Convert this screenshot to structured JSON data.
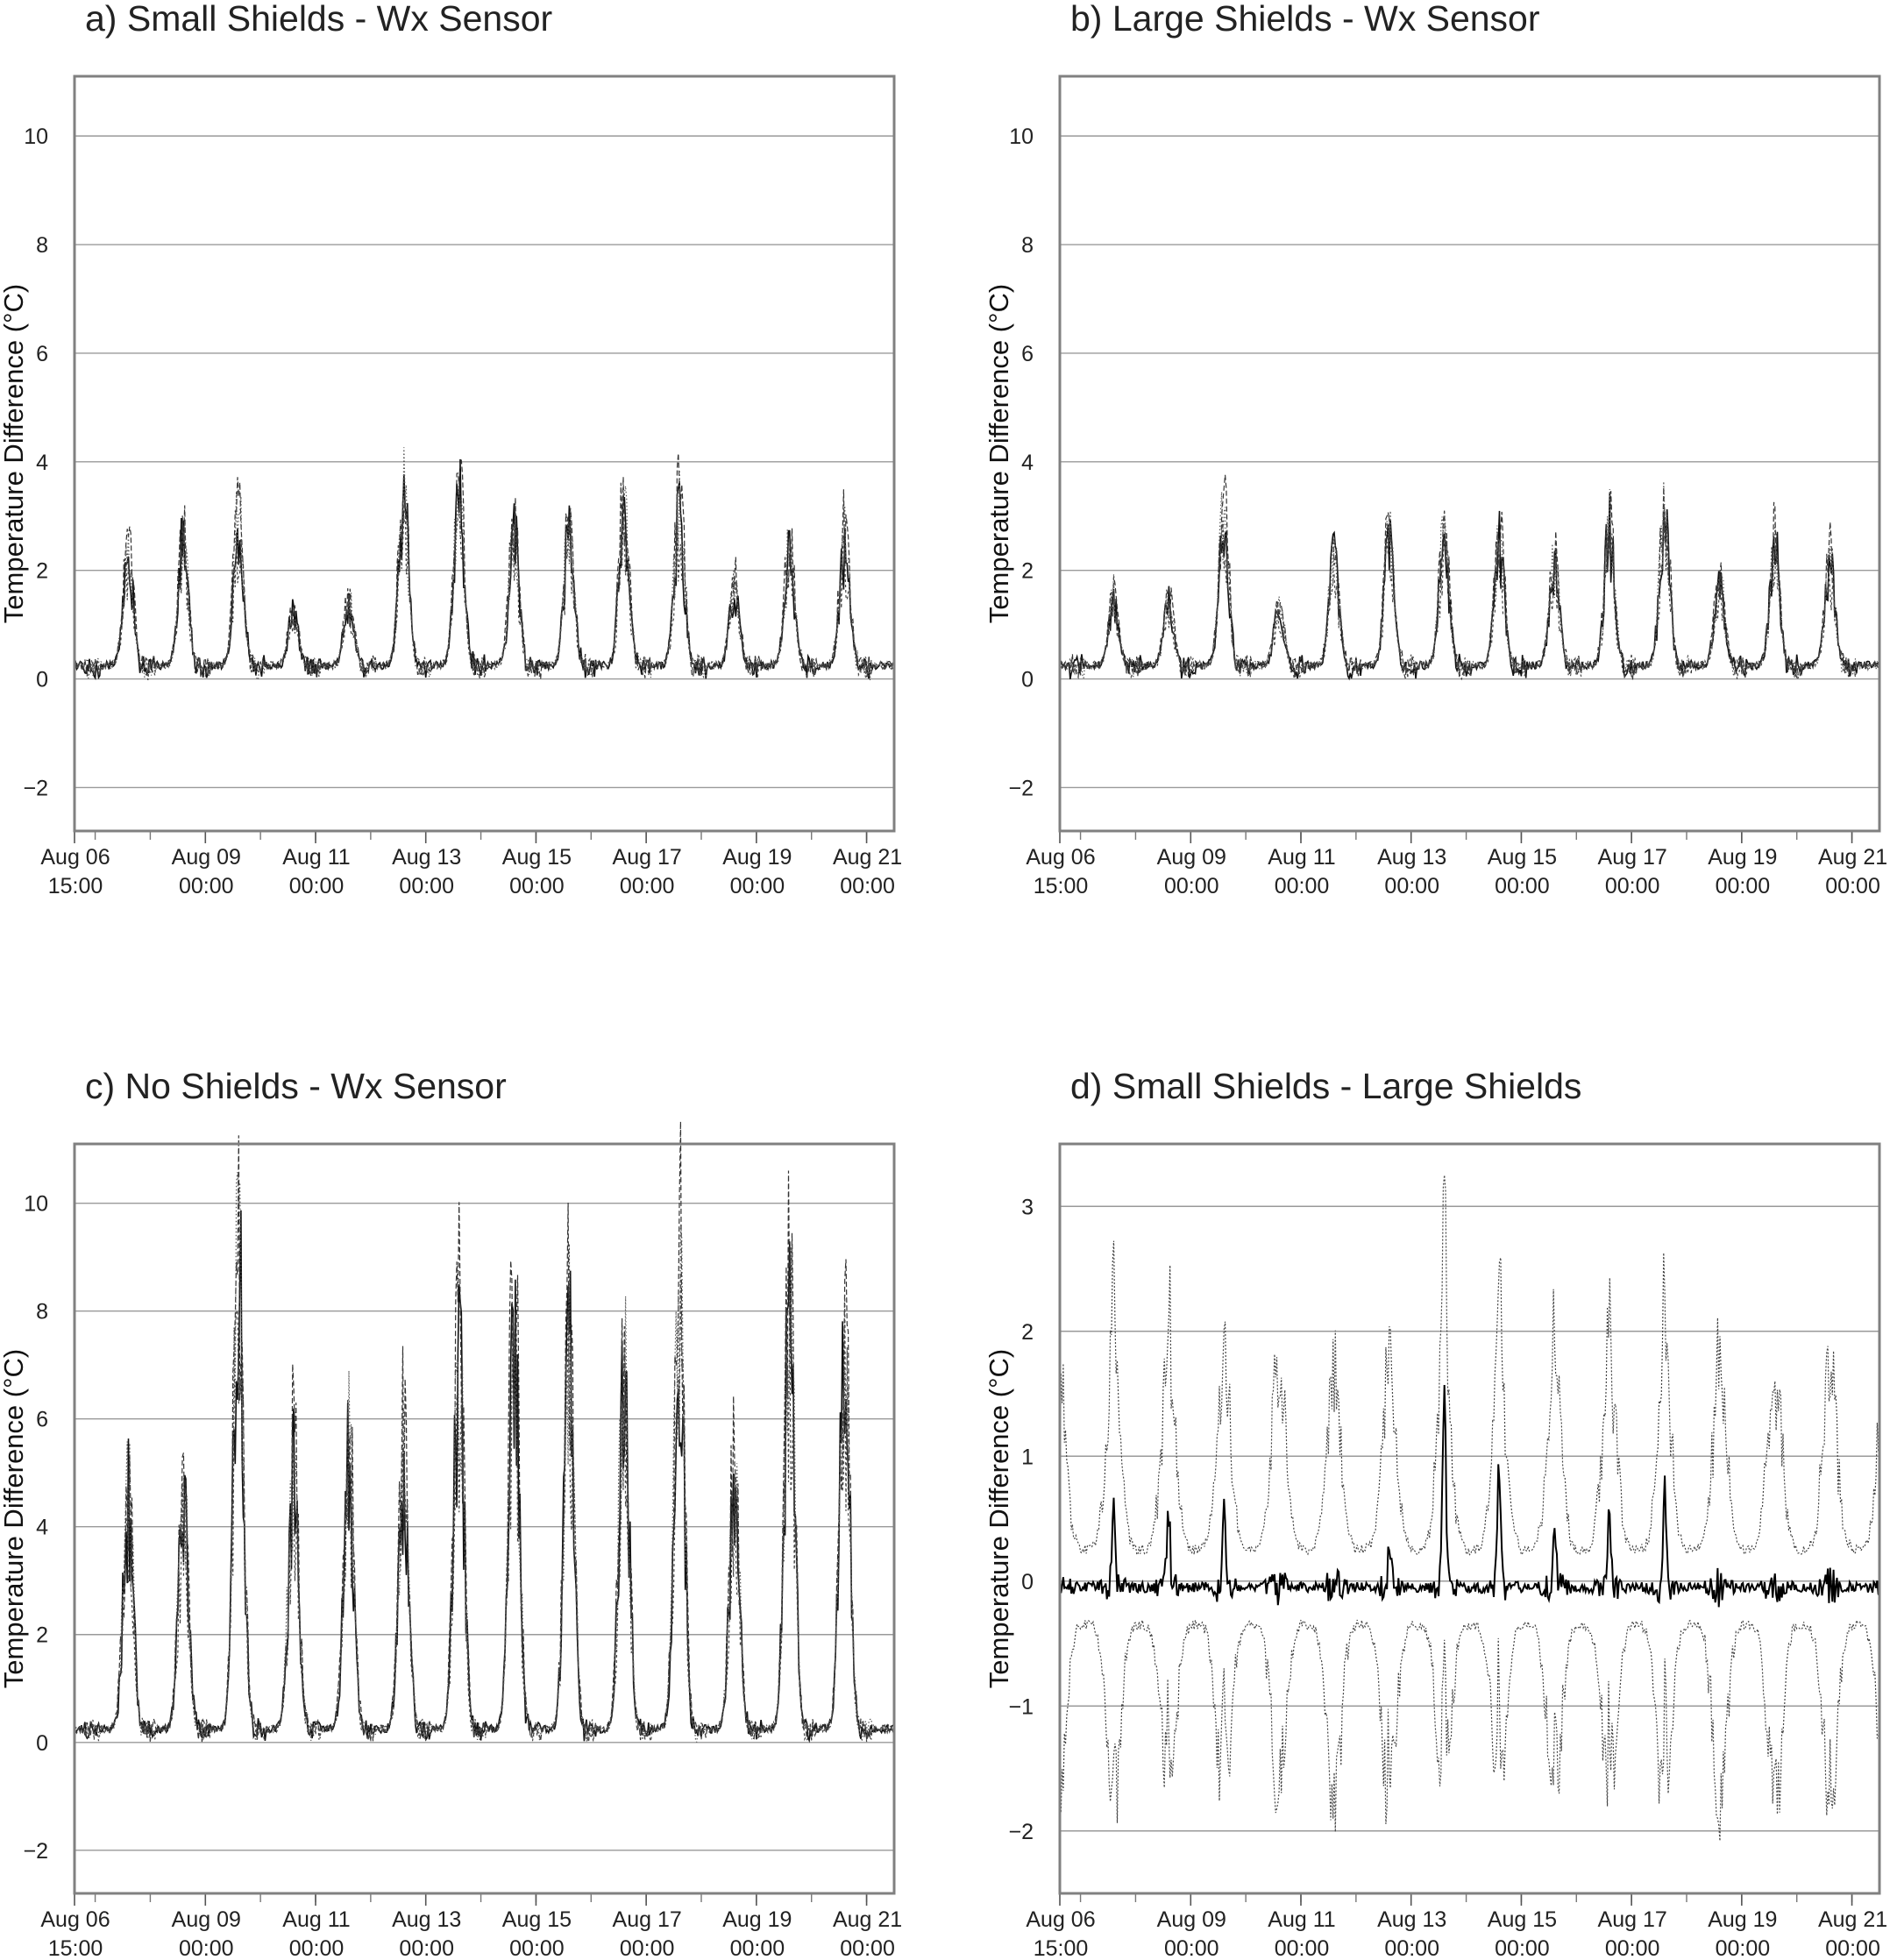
{
  "chart_data": [
    {
      "type": "line",
      "title": "a) Small Shields - Wx Sensor",
      "ylabel": "Temperature Difference (°C)",
      "xlabel": "",
      "ylim": [
        -2.8,
        11.1
      ],
      "yticks": [
        -2,
        0,
        2,
        4,
        6,
        8,
        10
      ],
      "ytick_labels": [
        "−2",
        "0",
        "2",
        "4",
        "6",
        "8",
        "10"
      ],
      "xlim": [
        "2019-08-06 15:00",
        "2019-08-21 12:00"
      ],
      "xticks": [
        "Aug 06\n15:00",
        "Aug 09\n00:00",
        "Aug 11\n00:00",
        "Aug 13\n00:00",
        "Aug 15\n00:00",
        "Aug 17\n00:00",
        "Aug 19\n00:00",
        "Aug 21\n00:00"
      ],
      "xtick_days": [
        6.625,
        9,
        11,
        13,
        15,
        17,
        19,
        21
      ],
      "daily_peaks": [
        {
          "day": 7.6,
          "value": 2.5
        },
        {
          "day": 8.6,
          "value": 2.8
        },
        {
          "day": 9.6,
          "value": 3.3
        },
        {
          "day": 10.6,
          "value": 1.2
        },
        {
          "day": 11.6,
          "value": 1.4
        },
        {
          "day": 12.6,
          "value": 3.8
        },
        {
          "day": 13.6,
          "value": 4.0
        },
        {
          "day": 14.6,
          "value": 3.0
        },
        {
          "day": 15.6,
          "value": 3.0
        },
        {
          "day": 16.6,
          "value": 3.6
        },
        {
          "day": 17.6,
          "value": 3.5
        },
        {
          "day": 18.6,
          "value": 1.8
        },
        {
          "day": 19.6,
          "value": 2.6
        },
        {
          "day": 20.6,
          "value": 2.8
        }
      ],
      "min_value": -0.7,
      "grid": true
    },
    {
      "type": "line",
      "title": "b) Large Shields - Wx Sensor",
      "ylabel": "Temperature Difference (°C)",
      "xlabel": "",
      "ylim": [
        -2.8,
        11.1
      ],
      "yticks": [
        -2,
        0,
        2,
        4,
        6,
        8,
        10
      ],
      "ytick_labels": [
        "−2",
        "0",
        "2",
        "4",
        "6",
        "8",
        "10"
      ],
      "xlim": [
        "2019-08-06 15:00",
        "2019-08-21 12:00"
      ],
      "xticks": [
        "Aug 06\n15:00",
        "Aug 09\n00:00",
        "Aug 11\n00:00",
        "Aug 13\n00:00",
        "Aug 15\n00:00",
        "Aug 17\n00:00",
        "Aug 19\n00:00",
        "Aug 21\n00:00"
      ],
      "xtick_days": [
        6.625,
        9,
        11,
        13,
        15,
        17,
        19,
        21
      ],
      "daily_peaks": [
        {
          "day": 7.6,
          "value": 1.5
        },
        {
          "day": 8.6,
          "value": 1.4
        },
        {
          "day": 9.6,
          "value": 3.3
        },
        {
          "day": 10.6,
          "value": 1.3
        },
        {
          "day": 11.6,
          "value": 2.4
        },
        {
          "day": 12.6,
          "value": 2.9
        },
        {
          "day": 13.6,
          "value": 2.9
        },
        {
          "day": 14.6,
          "value": 2.8
        },
        {
          "day": 15.6,
          "value": 2.3
        },
        {
          "day": 16.6,
          "value": 3.1
        },
        {
          "day": 17.6,
          "value": 3.5
        },
        {
          "day": 18.6,
          "value": 1.9
        },
        {
          "day": 19.6,
          "value": 2.7
        },
        {
          "day": 20.6,
          "value": 2.4
        }
      ],
      "min_value": -0.7,
      "grid": true
    },
    {
      "type": "line",
      "title": "c) No Shields - Wx Sensor",
      "ylabel": "Temperature Difference (°C)",
      "xlabel": "",
      "ylim": [
        -2.8,
        11.1
      ],
      "yticks": [
        -2,
        0,
        2,
        4,
        6,
        8,
        10
      ],
      "ytick_labels": [
        "−2",
        "0",
        "2",
        "4",
        "6",
        "8",
        "10"
      ],
      "xlim": [
        "2019-08-06 15:00",
        "2019-08-21 12:00"
      ],
      "xticks": [
        "Aug 06\n15:00",
        "Aug 09\n00:00",
        "Aug 11\n00:00",
        "Aug 13\n00:00",
        "Aug 15\n00:00",
        "Aug 17\n00:00",
        "Aug 19\n00:00",
        "Aug 21\n00:00"
      ],
      "xtick_days": [
        6.625,
        9,
        11,
        13,
        15,
        17,
        19,
        21
      ],
      "daily_peaks": [
        {
          "day": 7.6,
          "value": 5.2
        },
        {
          "day": 8.6,
          "value": 5.2
        },
        {
          "day": 9.6,
          "value": 10.6
        },
        {
          "day": 10.6,
          "value": 6.1
        },
        {
          "day": 11.6,
          "value": 6.3
        },
        {
          "day": 12.6,
          "value": 6.1
        },
        {
          "day": 13.6,
          "value": 8.5
        },
        {
          "day": 14.6,
          "value": 9.7
        },
        {
          "day": 15.6,
          "value": 8.8
        },
        {
          "day": 16.6,
          "value": 8.2
        },
        {
          "day": 17.6,
          "value": 10.0
        },
        {
          "day": 18.6,
          "value": 5.6
        },
        {
          "day": 19.6,
          "value": 9.6
        },
        {
          "day": 20.6,
          "value": 8.8
        }
      ],
      "min_value": -1.1,
      "grid": true
    },
    {
      "type": "line",
      "title": "d) Small Shields - Large Shields",
      "ylabel": "Temperature Difference (°C)",
      "xlabel": "",
      "ylim": [
        -2.5,
        3.5
      ],
      "yticks": [
        -2,
        -1,
        0,
        1,
        2,
        3
      ],
      "ytick_labels": [
        "−2",
        "−1",
        "0",
        "1",
        "2",
        "3"
      ],
      "xlim": [
        "2019-08-06 15:00",
        "2019-08-21 12:00"
      ],
      "xticks": [
        "Aug 06\n15:00",
        "Aug 09\n00:00",
        "Aug 11\n00:00",
        "Aug 13\n00:00",
        "Aug 15\n00:00",
        "Aug 17\n00:00",
        "Aug 19\n00:00",
        "Aug 21\n00:00"
      ],
      "xtick_days": [
        6.625,
        9,
        11,
        13,
        15,
        17,
        19,
        21
      ],
      "mean_peaks": [
        {
          "day": 7.6,
          "value": 0.6
        },
        {
          "day": 8.6,
          "value": 0.55
        },
        {
          "day": 9.6,
          "value": 0.7
        },
        {
          "day": 12.6,
          "value": 0.3
        },
        {
          "day": 13.6,
          "value": 1.65
        },
        {
          "day": 14.6,
          "value": 1.0
        },
        {
          "day": 15.6,
          "value": 0.6
        },
        {
          "day": 16.6,
          "value": 0.6
        },
        {
          "day": 17.6,
          "value": 0.75
        }
      ],
      "upper_band_max": 3.25,
      "lower_band_min": -2.1,
      "grid": true
    }
  ]
}
